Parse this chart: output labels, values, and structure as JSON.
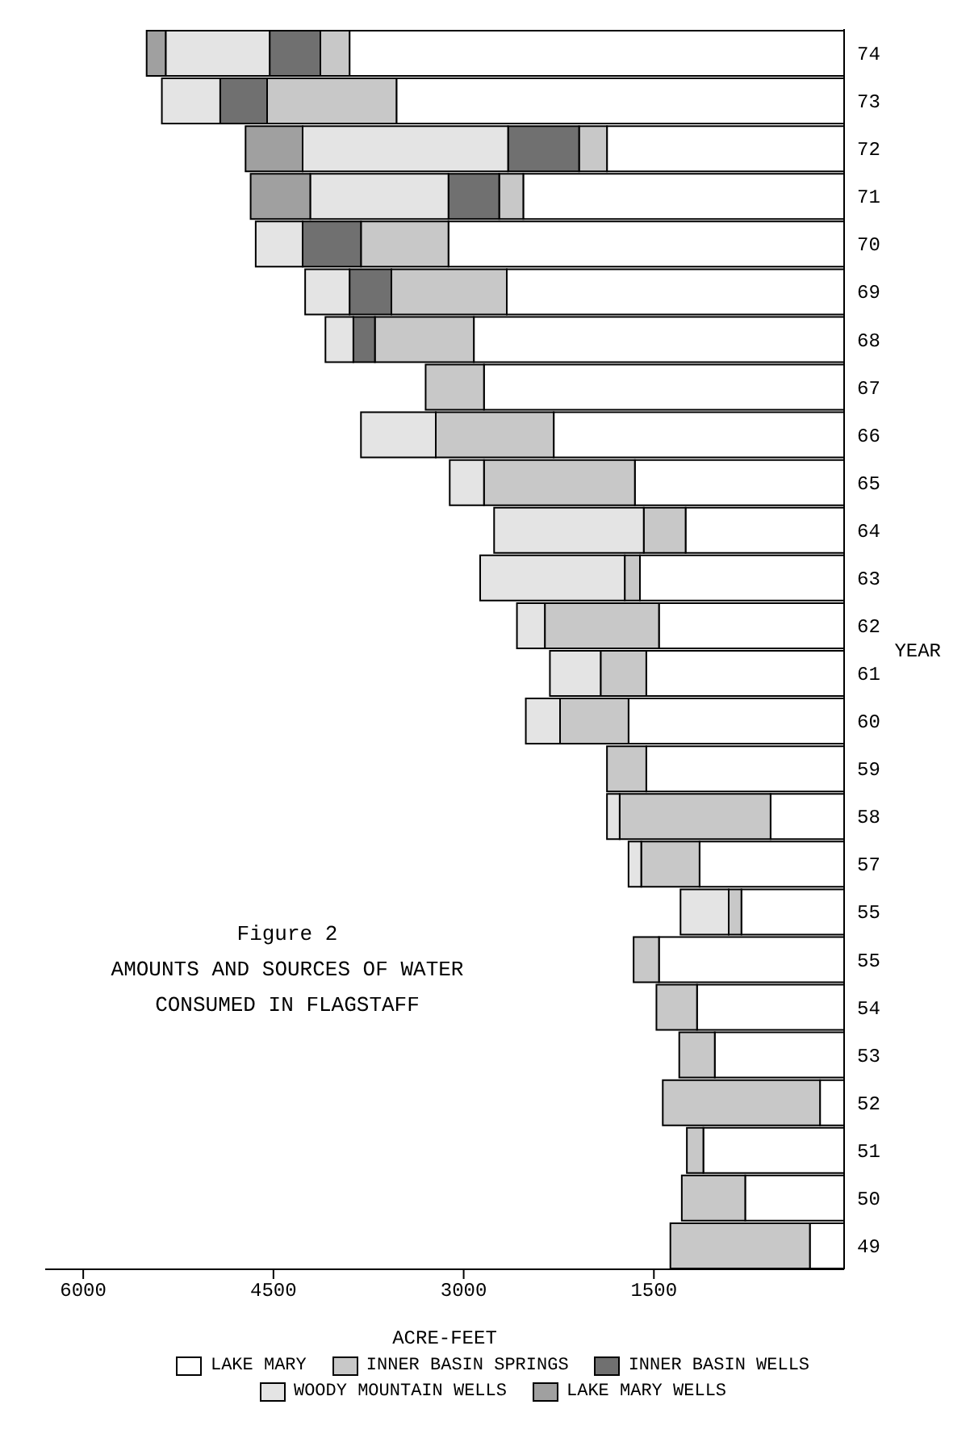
{
  "chart_data": {
    "type": "bar",
    "orientation": "horizontal",
    "stacked": true,
    "title": "Figure 2",
    "subtitle": "AMOUNTS AND SOURCES OF WATER CONSUMED IN FLAGSTAFF",
    "xlabel": "ACRE-FEET",
    "ylabel": "YEAR",
    "categories": [
      "74",
      "73",
      "72",
      "71",
      "70",
      "69",
      "68",
      "67",
      "66",
      "65",
      "64",
      "63",
      "62",
      "61",
      "60",
      "59",
      "58",
      "57",
      "55",
      "55",
      "54",
      "53",
      "52",
      "51",
      "50",
      "49"
    ],
    "series": [
      {
        "name": "LAKE MARY",
        "color": "#ffffff",
        "values": [
          3900,
          3530,
          1870,
          2530,
          3120,
          2660,
          2920,
          2840,
          2290,
          1650,
          1250,
          1610,
          1460,
          1560,
          1700,
          1560,
          580,
          1140,
          810,
          1460,
          1160,
          1020,
          190,
          1110,
          780,
          270
        ]
      },
      {
        "name": "INNER BASIN SPRINGS",
        "color": "#c8c8c8",
        "values": [
          230,
          1020,
          220,
          190,
          690,
          910,
          780,
          460,
          930,
          1190,
          330,
          120,
          900,
          360,
          540,
          310,
          1190,
          460,
          100,
          200,
          320,
          280,
          1240,
          130,
          500,
          1100
        ]
      },
      {
        "name": "INNER BASIN WELLS",
        "color": "#707070",
        "values": [
          400,
          370,
          560,
          400,
          460,
          330,
          170,
          null,
          null,
          null,
          null,
          null,
          null,
          null,
          null,
          null,
          null,
          null,
          null,
          null,
          null,
          null,
          null,
          null,
          null,
          null
        ]
      },
      {
        "name": "WOODY MOUNTAIN WELLS",
        "color": "#e4e4e4",
        "values": [
          820,
          460,
          1620,
          1090,
          370,
          350,
          220,
          null,
          590,
          270,
          1180,
          1140,
          220,
          400,
          270,
          null,
          100,
          100,
          380,
          null,
          null,
          null,
          null,
          null,
          null,
          null
        ]
      },
      {
        "name": "LAKE MARY WELLS",
        "color": "#a0a0a0",
        "values": [
          150,
          null,
          450,
          470,
          null,
          null,
          null,
          null,
          null,
          null,
          null,
          null,
          null,
          null,
          null,
          null,
          null,
          null,
          null,
          null,
          null,
          null,
          null,
          null,
          null,
          null
        ]
      }
    ],
    "xlim": [
      6300,
      0
    ],
    "xticks": [
      1500,
      3000,
      4500,
      6000
    ],
    "legend": "bottom"
  }
}
